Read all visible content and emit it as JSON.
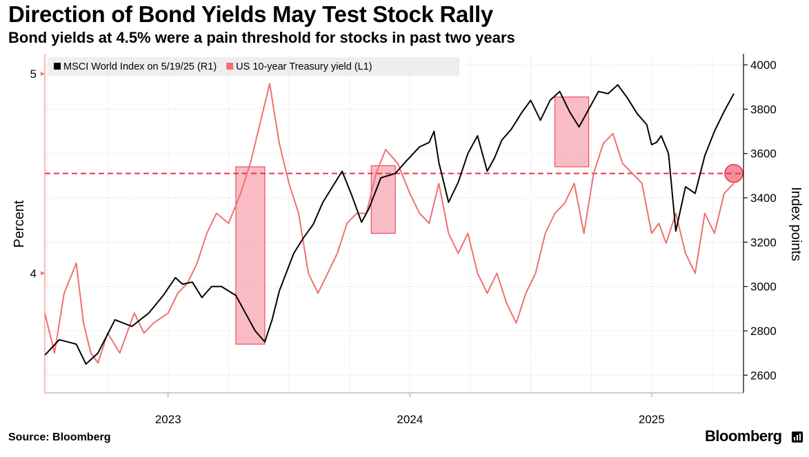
{
  "header": {
    "title": "Direction of Bond Yields May Test Stock Rally",
    "subtitle": "Bond yields at 4.5% were a pain threshold for stocks in past two years"
  },
  "footer": {
    "source": "Source: Bloomberg",
    "brand": "Bloomberg"
  },
  "colors": {
    "msci": "#000000",
    "treasury": "#f07070",
    "threshold": "#e8334a",
    "highlight_fill": "#f7a5b0",
    "highlight_stroke": "#e8334a",
    "grid": "#cccccc"
  },
  "chart_data": {
    "type": "line",
    "legend": [
      {
        "label": "MSCI World Index on 5/19/25 (R1)",
        "color": "#000000"
      },
      {
        "label": "US 10-year Treasury yield (L1)",
        "color": "#f07070"
      }
    ],
    "legend_position": "top-left",
    "x_range": [
      2022.49,
      2025.38
    ],
    "x_ticks": [
      {
        "label": "2023",
        "value": 2023.0
      },
      {
        "label": "2024",
        "value": 2024.0
      },
      {
        "label": "2025",
        "value": 2025.0
      }
    ],
    "left_axis": {
      "title": "Percent",
      "range": [
        3.4,
        5.1
      ],
      "ticks": [
        {
          "label": "4",
          "value": 4
        },
        {
          "label": "5",
          "value": 5
        }
      ]
    },
    "right_axis": {
      "title": "Index points",
      "range": [
        2520,
        4050
      ],
      "ticks": [
        {
          "label": "2600",
          "value": 2600
        },
        {
          "label": "2800",
          "value": 2800
        },
        {
          "label": "3000",
          "value": 3000
        },
        {
          "label": "3200",
          "value": 3200
        },
        {
          "label": "3400",
          "value": 3400
        },
        {
          "label": "3600",
          "value": 3600
        },
        {
          "label": "3800",
          "value": 3800
        },
        {
          "label": "4000",
          "value": 4000
        }
      ]
    },
    "threshold": {
      "value": 4.5,
      "axis": "left"
    },
    "series": [
      {
        "name": "MSCI World Index on 5/19/25 (R1)",
        "axis": "right",
        "x": [
          2022.49,
          2022.55,
          2022.62,
          2022.66,
          2022.71,
          2022.78,
          2022.85,
          2022.92,
          2022.98,
          2023.03,
          2023.06,
          2023.1,
          2023.14,
          2023.18,
          2023.22,
          2023.28,
          2023.32,
          2023.36,
          2023.4,
          2023.43,
          2023.46,
          2023.52,
          2023.56,
          2023.6,
          2023.64,
          2023.68,
          2023.72,
          2023.76,
          2023.8,
          2023.83,
          2023.88,
          2023.94,
          2023.98,
          2024.04,
          2024.08,
          2024.1,
          2024.12,
          2024.16,
          2024.2,
          2024.24,
          2024.28,
          2024.32,
          2024.35,
          2024.38,
          2024.42,
          2024.46,
          2024.5,
          2024.54,
          2024.58,
          2024.62,
          2024.66,
          2024.7,
          2024.74,
          2024.78,
          2024.82,
          2024.86,
          2024.9,
          2024.94,
          2024.98,
          2025.0,
          2025.02,
          2025.04,
          2025.07,
          2025.1,
          2025.14,
          2025.18,
          2025.22,
          2025.26,
          2025.3,
          2025.34
        ],
        "values": [
          2690,
          2760,
          2740,
          2650,
          2700,
          2850,
          2820,
          2880,
          2960,
          3040,
          3010,
          3020,
          2950,
          3000,
          3000,
          2960,
          2880,
          2800,
          2750,
          2850,
          2980,
          3150,
          3220,
          3280,
          3380,
          3450,
          3520,
          3410,
          3290,
          3350,
          3490,
          3510,
          3560,
          3630,
          3650,
          3700,
          3560,
          3380,
          3470,
          3600,
          3680,
          3520,
          3580,
          3660,
          3710,
          3780,
          3840,
          3750,
          3840,
          3880,
          3790,
          3720,
          3800,
          3880,
          3870,
          3910,
          3850,
          3780,
          3730,
          3640,
          3650,
          3680,
          3600,
          3250,
          3450,
          3420,
          3590,
          3700,
          3790,
          3870
        ]
      },
      {
        "name": "US 10-year Treasury yield (L1)",
        "axis": "left",
        "x": [
          2022.49,
          2022.53,
          2022.57,
          2022.62,
          2022.65,
          2022.68,
          2022.71,
          2022.75,
          2022.8,
          2022.86,
          2022.9,
          2022.94,
          2023.0,
          2023.04,
          2023.08,
          2023.12,
          2023.16,
          2023.2,
          2023.25,
          2023.3,
          2023.34,
          2023.38,
          2023.42,
          2023.46,
          2023.5,
          2023.54,
          2023.58,
          2023.62,
          2023.66,
          2023.7,
          2023.74,
          2023.78,
          2023.82,
          2023.86,
          2023.9,
          2023.95,
          2024.0,
          2024.04,
          2024.08,
          2024.12,
          2024.16,
          2024.2,
          2024.24,
          2024.28,
          2024.32,
          2024.36,
          2024.4,
          2024.44,
          2024.48,
          2024.52,
          2024.56,
          2024.6,
          2024.64,
          2024.68,
          2024.72,
          2024.76,
          2024.8,
          2024.84,
          2024.88,
          2024.92,
          2024.96,
          2025.0,
          2025.03,
          2025.06,
          2025.1,
          2025.14,
          2025.18,
          2025.22,
          2025.26,
          2025.3,
          2025.34
        ],
        "values": [
          3.8,
          3.6,
          3.9,
          4.05,
          3.75,
          3.6,
          3.55,
          3.7,
          3.6,
          3.8,
          3.7,
          3.75,
          3.8,
          3.9,
          3.95,
          4.05,
          4.2,
          4.3,
          4.25,
          4.4,
          4.55,
          4.75,
          4.95,
          4.65,
          4.45,
          4.3,
          4.0,
          3.9,
          4.0,
          4.1,
          4.25,
          4.3,
          4.3,
          4.5,
          4.62,
          4.55,
          4.4,
          4.3,
          4.25,
          4.45,
          4.2,
          4.1,
          4.2,
          4.0,
          3.9,
          4.0,
          3.85,
          3.75,
          3.9,
          4.0,
          4.2,
          4.3,
          4.35,
          4.45,
          4.2,
          4.5,
          4.65,
          4.7,
          4.55,
          4.5,
          4.45,
          4.2,
          4.25,
          4.15,
          4.3,
          4.1,
          4.0,
          4.3,
          4.2,
          4.4,
          4.45
        ]
      }
    ],
    "highlights": [
      {
        "x_start": 2023.28,
        "x_end": 2023.4,
        "y_low": 2740,
        "y_high": 3540
      },
      {
        "x_start": 2023.84,
        "x_end": 2023.94,
        "y_low": 3240,
        "y_high": 3545
      },
      {
        "x_start": 2024.6,
        "x_end": 2024.74,
        "y_low": 3540,
        "y_high": 3855
      }
    ],
    "marker": {
      "x": 2025.34,
      "y": 4.5,
      "axis": "left"
    }
  }
}
